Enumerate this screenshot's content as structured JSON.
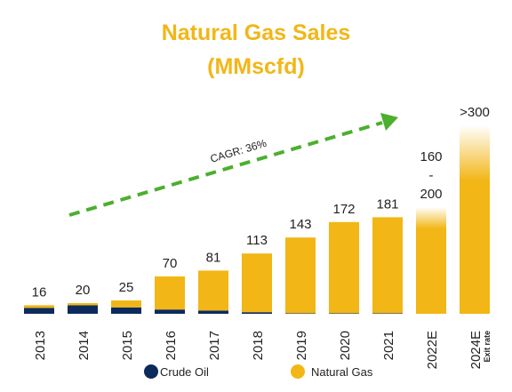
{
  "title_line1": "Natural Gas Sales",
  "title_line2": "(MMscfd)",
  "colors": {
    "gas": "#F2B617",
    "oil": "#0D2A5C",
    "arrow": "#4CAF2E",
    "title": "#F2B617"
  },
  "chart_data": {
    "type": "bar",
    "stacked": true,
    "categories": [
      "2013",
      "2014",
      "2015",
      "2016",
      "2017",
      "2018",
      "2019",
      "2020",
      "2021",
      "2022E",
      "2024E"
    ],
    "category_sublabels": [
      "",
      "",
      "",
      "",
      "",
      "",
      "",
      "",
      "",
      "",
      "Exit rate"
    ],
    "total_labels": [
      "16",
      "20",
      "25",
      "70",
      "81",
      "113",
      "143",
      "172",
      "181",
      "160\n-\n200",
      ">300"
    ],
    "series": [
      {
        "name": "Crude Oil",
        "values": [
          11,
          16,
          12,
          8,
          6,
          3,
          1,
          1,
          1,
          0,
          0
        ]
      },
      {
        "name": "Natural Gas",
        "values": [
          5,
          4,
          13,
          62,
          75,
          110,
          142,
          171,
          180,
          160,
          250
        ]
      }
    ],
    "estimate_range": {
      "2022E": [
        160,
        200
      ],
      "2024E": [
        250,
        300
      ]
    },
    "annotation": "CAGR: 36%",
    "legend_position": "bottom"
  }
}
